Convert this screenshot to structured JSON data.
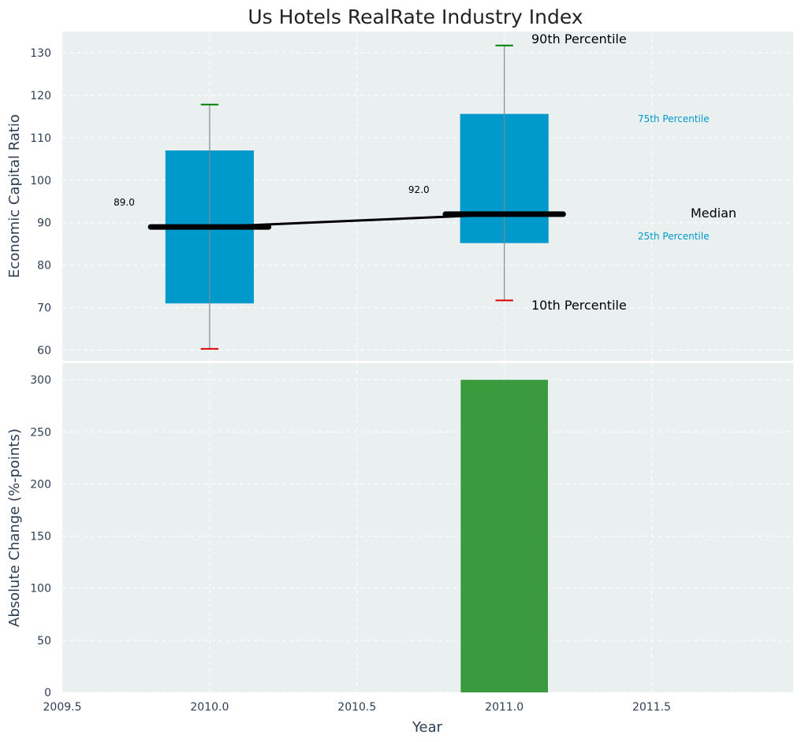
{
  "chart_data": [
    {
      "type": "box",
      "title": "Us Hotels RealRate Industry Index",
      "xlabel": "",
      "ylabel": "Economic Capital Ratio",
      "xlim": [
        2009.5,
        2011.98
      ],
      "ylim": [
        57.5,
        135
      ],
      "yticks": [
        60,
        70,
        80,
        90,
        100,
        110,
        120,
        130
      ],
      "grid": true,
      "boxes": [
        {
          "x": 2010.0,
          "p10": 60.3,
          "p25": 71.0,
          "median": 89.0,
          "p75": 107.0,
          "p90": 117.8,
          "median_label": "89.0"
        },
        {
          "x": 2011.0,
          "p10": 71.7,
          "p25": 85.2,
          "median": 92.0,
          "p75": 115.6,
          "p90": 131.7,
          "median_label": "92.0"
        }
      ],
      "annotations": {
        "p90": "90th Percentile",
        "p75": "75th Percentile",
        "median": "Median",
        "p25": "25th Percentile",
        "p10": "10th Percentile"
      },
      "colors": {
        "box": "#0099cc",
        "median": "#000000",
        "p90_cap": "#008000",
        "p10_cap": "#e00000",
        "whisker": "#7f8c8d",
        "annotation_cyan": "#0099cc"
      }
    },
    {
      "type": "bar",
      "title": "",
      "xlabel": "Year",
      "ylabel": "Absolute Change (%-points)",
      "xlim": [
        2009.5,
        2011.98
      ],
      "ylim": [
        0,
        316
      ],
      "yticks": [
        0,
        50,
        100,
        150,
        200,
        250,
        300
      ],
      "xticks": [
        2009.5,
        2010.0,
        2010.5,
        2011.0,
        2011.5
      ],
      "xtick_labels": [
        "2009.5",
        "2010.0",
        "2010.5",
        "2011.0",
        "2011.5"
      ],
      "grid": true,
      "bars": [
        {
          "x": 2011.0,
          "value": 300,
          "color": "#3c9a3e"
        }
      ]
    }
  ],
  "colors": {
    "plot_bg": "#eaeff0",
    "page_bg": "#ffffff"
  }
}
